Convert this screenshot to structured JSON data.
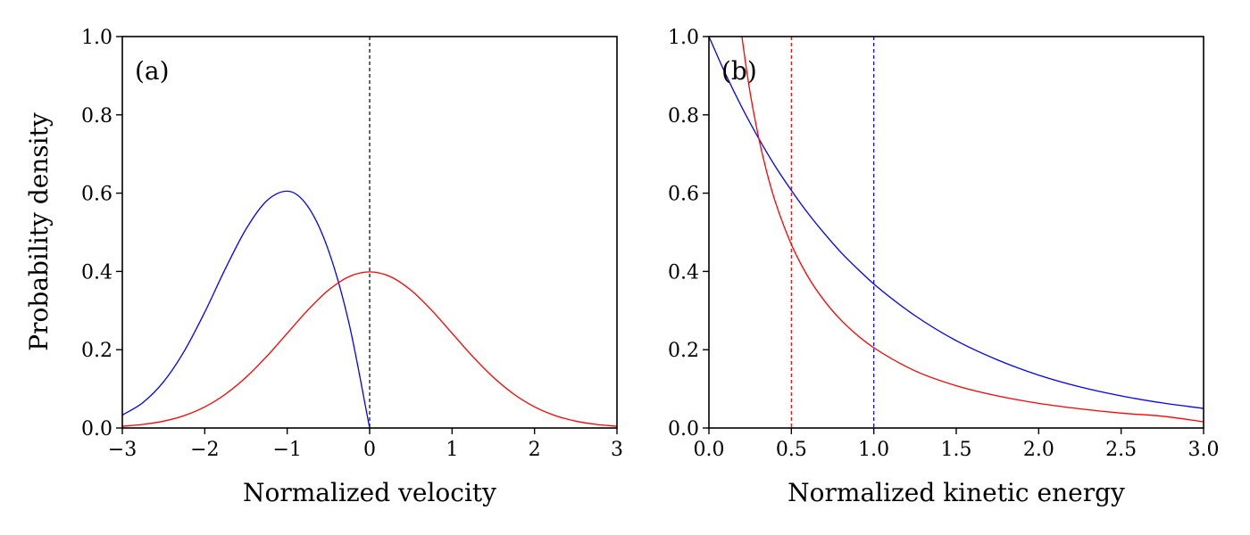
{
  "chart_data": [
    {
      "type": "line",
      "panel_label": "(a)",
      "xlabel": "Normalized velocity",
      "ylabel": "Probability density",
      "xlim": [
        -3,
        3
      ],
      "ylim": [
        0,
        1
      ],
      "xticks": [
        -3,
        -2,
        -1,
        0,
        1,
        2,
        3
      ],
      "xtick_labels": [
        "−3",
        "−2",
        "−1",
        "0",
        "1",
        "2",
        "3"
      ],
      "yticks": [
        0,
        0.2,
        0.4,
        0.6,
        0.8,
        1.0
      ],
      "ytick_labels": [
        "0.0",
        "0.2",
        "0.4",
        "0.6",
        "0.8",
        "1.0"
      ],
      "grid": false,
      "series": [
        {
          "color": "#0000ff",
          "x": [
            -3,
            -2.75,
            -2.5,
            -2.25,
            -2,
            -1.75,
            -1.5,
            -1.25,
            -1,
            -0.75,
            -0.5,
            -0.25,
            0
          ],
          "y": [
            0.033,
            0.065,
            0.118,
            0.196,
            0.296,
            0.407,
            0.508,
            0.58,
            0.605,
            0.566,
            0.454,
            0.267,
            0.0
          ]
        },
        {
          "color": "#ff0000",
          "x": [
            -3,
            -2.75,
            -2.5,
            -2.25,
            -2,
            -1.75,
            -1.5,
            -1.25,
            -1,
            -0.75,
            -0.5,
            -0.25,
            0,
            0.25,
            0.5,
            0.75,
            1,
            1.25,
            1.5,
            1.75,
            2,
            2.25,
            2.5,
            2.75,
            3
          ],
          "y": [
            0.0044,
            0.0091,
            0.0175,
            0.0317,
            0.054,
            0.0863,
            0.1295,
            0.1826,
            0.242,
            0.3011,
            0.3521,
            0.3867,
            0.3989,
            0.3867,
            0.3521,
            0.3011,
            0.242,
            0.1826,
            0.1295,
            0.0863,
            0.054,
            0.0317,
            0.0175,
            0.0091,
            0.0044
          ]
        }
      ],
      "vlines": [
        {
          "x": 0,
          "color": "#000000"
        }
      ]
    },
    {
      "type": "line",
      "panel_label": "(b)",
      "xlabel": "Normalized kinetic energy",
      "ylabel": "",
      "xlim": [
        0,
        3
      ],
      "ylim": [
        0,
        1
      ],
      "xticks": [
        0,
        0.5,
        1,
        1.5,
        2,
        2.5,
        3
      ],
      "xtick_labels": [
        "0.0",
        "0.5",
        "1.0",
        "1.5",
        "2.0",
        "2.5",
        "3.0"
      ],
      "yticks": [
        0,
        0.2,
        0.4,
        0.6,
        0.8,
        1.0
      ],
      "ytick_labels": [
        "0.0",
        "0.2",
        "0.4",
        "0.6",
        "0.8",
        "1.0"
      ],
      "grid": false,
      "series": [
        {
          "color": "#0000ff",
          "x": [
            0,
            0.1,
            0.2,
            0.3,
            0.4,
            0.5,
            0.6,
            0.7,
            0.8,
            0.9,
            1.0,
            1.25,
            1.5,
            1.75,
            2.0,
            2.25,
            2.5,
            2.75,
            3.0
          ],
          "y": [
            1.0,
            0.905,
            0.819,
            0.741,
            0.67,
            0.607,
            0.549,
            0.497,
            0.449,
            0.407,
            0.368,
            0.287,
            0.223,
            0.174,
            0.135,
            0.105,
            0.082,
            0.064,
            0.05
          ]
        },
        {
          "color": "#ff0000",
          "x": [
            0.2,
            0.225,
            0.25,
            0.3,
            0.35,
            0.4,
            0.5,
            0.6,
            0.7,
            0.8,
            0.9,
            1.0,
            1.25,
            1.5,
            1.75,
            2.0,
            2.25,
            2.5,
            2.75,
            3.0
          ],
          "y": [
            1.0,
            0.924,
            0.856,
            0.745,
            0.655,
            0.581,
            0.469,
            0.387,
            0.325,
            0.276,
            0.237,
            0.205,
            0.146,
            0.108,
            0.082,
            0.063,
            0.049,
            0.038,
            0.03,
            0.016
          ]
        }
      ],
      "vlines": [
        {
          "x": 0.5,
          "color": "#ff0000"
        },
        {
          "x": 1.0,
          "color": "#0000ff"
        }
      ]
    }
  ]
}
